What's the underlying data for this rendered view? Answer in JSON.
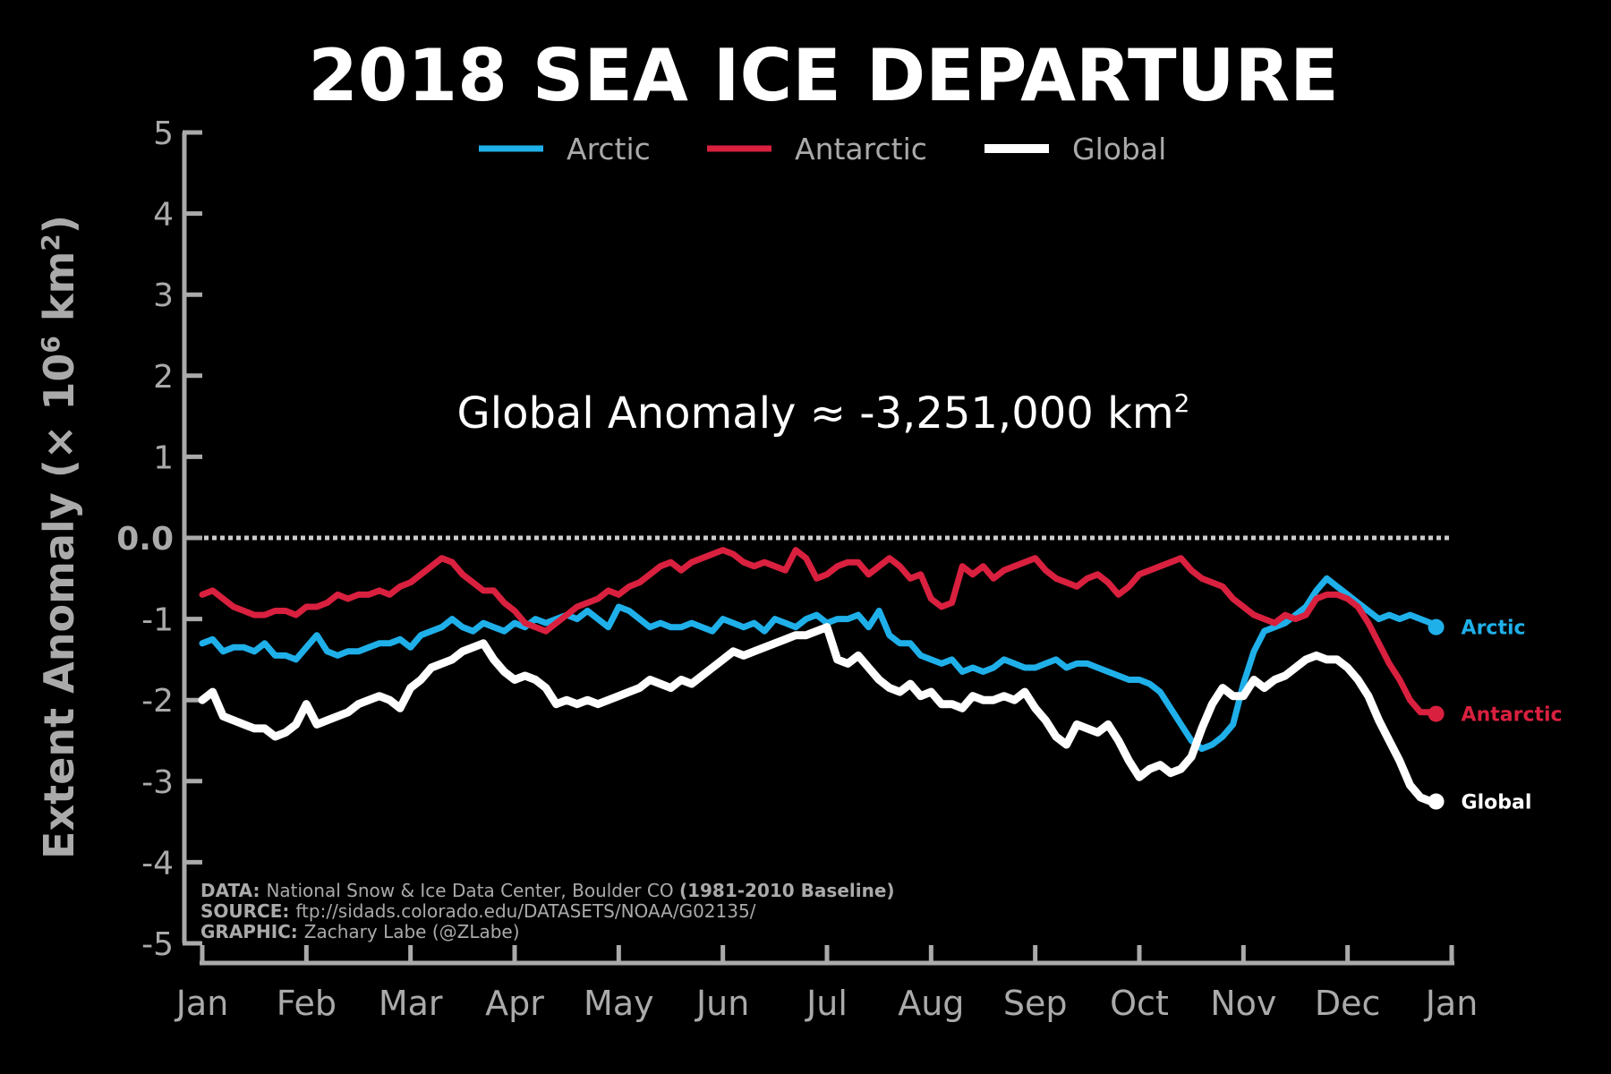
{
  "chart_data": {
    "type": "line",
    "title": "2018 SEA ICE DEPARTURE",
    "ylabel": "Extent Anomaly (× 10",
    "ylabel_sup": "6",
    "ylabel_end": " km",
    "ylabel_sup2": "2",
    "ylabel_close": ")",
    "xlabel": "",
    "ylim": [
      -5,
      5
    ],
    "xlim": [
      0,
      12
    ],
    "y_ticks": [
      5,
      4,
      3,
      2,
      1,
      0,
      -1,
      -2,
      -3,
      -4,
      -5
    ],
    "y_tick_labels": [
      "5",
      "4",
      "3",
      "2",
      "1",
      "0.0",
      "-1",
      "-2",
      "-3",
      "-4",
      "-5"
    ],
    "x_ticks": [
      0,
      1,
      2,
      3,
      4,
      5,
      6,
      7,
      8,
      9,
      10,
      11,
      12
    ],
    "x_tick_labels": [
      "Jan",
      "Feb",
      "Mar",
      "Apr",
      "May",
      "Jun",
      "Jul",
      "Aug",
      "Sep",
      "Oct",
      "Nov",
      "Dec",
      "Jan"
    ],
    "zero_line": 0,
    "annotation": {
      "prefix": "Global Anomaly ≈ -3,251,000 km",
      "sup": "2",
      "value": -3.251
    },
    "legend": {
      "placement": "top-center",
      "entries": [
        "Arctic",
        "Antarctic",
        "Global"
      ]
    },
    "credits": [
      {
        "label": "DATA:",
        "text": "National Snow & Ice Data Center, Boulder CO ",
        "bold_tail": "(1981-2010 Baseline)"
      },
      {
        "label": "SOURCE:",
        "text": "ftp://sidads.colorado.edu/DATASETS/NOAA/G02135/",
        "bold_tail": ""
      },
      {
        "label": "GRAPHIC:",
        "text": "Zachary Labe (@ZLabe)",
        "bold_tail": ""
      }
    ],
    "series": [
      {
        "name": "Arctic",
        "color": "#1fb0ea",
        "end_label": "Arctic",
        "x": [
          0.0,
          0.1,
          0.2,
          0.3,
          0.4,
          0.5,
          0.6,
          0.7,
          0.8,
          0.9,
          1.0,
          1.1,
          1.2,
          1.3,
          1.4,
          1.5,
          1.6,
          1.7,
          1.8,
          1.9,
          2.0,
          2.1,
          2.2,
          2.3,
          2.4,
          2.5,
          2.6,
          2.7,
          2.8,
          2.9,
          3.0,
          3.1,
          3.2,
          3.3,
          3.4,
          3.5,
          3.6,
          3.7,
          3.8,
          3.9,
          4.0,
          4.1,
          4.2,
          4.3,
          4.4,
          4.5,
          4.6,
          4.7,
          4.8,
          4.9,
          5.0,
          5.1,
          5.2,
          5.3,
          5.4,
          5.5,
          5.6,
          5.7,
          5.8,
          5.9,
          6.0,
          6.1,
          6.2,
          6.3,
          6.4,
          6.5,
          6.6,
          6.7,
          6.8,
          6.9,
          7.0,
          7.1,
          7.2,
          7.3,
          7.4,
          7.5,
          7.6,
          7.7,
          7.8,
          7.9,
          8.0,
          8.1,
          8.2,
          8.3,
          8.4,
          8.5,
          8.6,
          8.7,
          8.8,
          8.9,
          9.0,
          9.1,
          9.2,
          9.3,
          9.4,
          9.5,
          9.6,
          9.7,
          9.8,
          9.9,
          10.0,
          10.1,
          10.2,
          10.3,
          10.4,
          10.5,
          10.6,
          10.7,
          10.8,
          10.9,
          11.0,
          11.1,
          11.2,
          11.3,
          11.4,
          11.5,
          11.6,
          11.7,
          11.8,
          11.85
        ],
        "values": [
          -1.3,
          -1.25,
          -1.4,
          -1.35,
          -1.35,
          -1.4,
          -1.3,
          -1.45,
          -1.45,
          -1.5,
          -1.35,
          -1.2,
          -1.4,
          -1.45,
          -1.4,
          -1.4,
          -1.35,
          -1.3,
          -1.3,
          -1.25,
          -1.35,
          -1.2,
          -1.15,
          -1.1,
          -1.0,
          -1.1,
          -1.15,
          -1.05,
          -1.1,
          -1.15,
          -1.05,
          -1.1,
          -1.0,
          -1.05,
          -1.0,
          -0.95,
          -1.0,
          -0.9,
          -1.0,
          -1.1,
          -0.85,
          -0.9,
          -1.0,
          -1.1,
          -1.05,
          -1.1,
          -1.1,
          -1.05,
          -1.1,
          -1.15,
          -1.0,
          -1.05,
          -1.1,
          -1.05,
          -1.15,
          -1.0,
          -1.05,
          -1.1,
          -1.0,
          -0.95,
          -1.05,
          -1.0,
          -1.0,
          -0.95,
          -1.1,
          -0.9,
          -1.2,
          -1.3,
          -1.3,
          -1.45,
          -1.5,
          -1.55,
          -1.5,
          -1.65,
          -1.6,
          -1.65,
          -1.6,
          -1.5,
          -1.55,
          -1.6,
          -1.6,
          -1.55,
          -1.5,
          -1.6,
          -1.55,
          -1.55,
          -1.6,
          -1.65,
          -1.7,
          -1.75,
          -1.75,
          -1.8,
          -1.9,
          -2.1,
          -2.3,
          -2.5,
          -2.6,
          -2.55,
          -2.45,
          -2.3,
          -1.8,
          -1.4,
          -1.15,
          -1.1,
          -1.05,
          -0.95,
          -0.85,
          -0.65,
          -0.5,
          -0.6,
          -0.7,
          -0.8,
          -0.9,
          -1.0,
          -0.95,
          -1.0,
          -0.95,
          -1.0,
          -1.05,
          -1.1
        ]
      },
      {
        "name": "Antarctic",
        "color": "#d9203f",
        "end_label": "Antarctic",
        "x": [
          0.0,
          0.1,
          0.2,
          0.3,
          0.4,
          0.5,
          0.6,
          0.7,
          0.8,
          0.9,
          1.0,
          1.1,
          1.2,
          1.3,
          1.4,
          1.5,
          1.6,
          1.7,
          1.8,
          1.9,
          2.0,
          2.1,
          2.2,
          2.3,
          2.4,
          2.5,
          2.6,
          2.7,
          2.8,
          2.9,
          3.0,
          3.1,
          3.2,
          3.3,
          3.4,
          3.5,
          3.6,
          3.7,
          3.8,
          3.9,
          4.0,
          4.1,
          4.2,
          4.3,
          4.4,
          4.5,
          4.6,
          4.7,
          4.8,
          4.9,
          5.0,
          5.1,
          5.2,
          5.3,
          5.4,
          5.5,
          5.6,
          5.7,
          5.8,
          5.9,
          6.0,
          6.1,
          6.2,
          6.3,
          6.4,
          6.5,
          6.6,
          6.7,
          6.8,
          6.9,
          7.0,
          7.1,
          7.2,
          7.3,
          7.4,
          7.5,
          7.6,
          7.7,
          7.8,
          7.9,
          8.0,
          8.1,
          8.2,
          8.3,
          8.4,
          8.5,
          8.6,
          8.7,
          8.8,
          8.9,
          9.0,
          9.1,
          9.2,
          9.3,
          9.4,
          9.5,
          9.6,
          9.7,
          9.8,
          9.9,
          10.0,
          10.1,
          10.2,
          10.3,
          10.4,
          10.5,
          10.6,
          10.7,
          10.8,
          10.9,
          11.0,
          11.1,
          11.2,
          11.3,
          11.4,
          11.5,
          11.6,
          11.7,
          11.8,
          11.85
        ],
        "values": [
          -0.7,
          -0.65,
          -0.75,
          -0.85,
          -0.9,
          -0.95,
          -0.95,
          -0.9,
          -0.9,
          -0.95,
          -0.85,
          -0.85,
          -0.8,
          -0.7,
          -0.75,
          -0.7,
          -0.7,
          -0.65,
          -0.7,
          -0.6,
          -0.55,
          -0.45,
          -0.35,
          -0.25,
          -0.3,
          -0.45,
          -0.55,
          -0.65,
          -0.65,
          -0.8,
          -0.9,
          -1.05,
          -1.1,
          -1.15,
          -1.05,
          -0.95,
          -0.85,
          -0.8,
          -0.75,
          -0.65,
          -0.7,
          -0.6,
          -0.55,
          -0.45,
          -0.35,
          -0.3,
          -0.4,
          -0.3,
          -0.25,
          -0.2,
          -0.15,
          -0.2,
          -0.3,
          -0.35,
          -0.3,
          -0.35,
          -0.4,
          -0.15,
          -0.25,
          -0.5,
          -0.45,
          -0.35,
          -0.3,
          -0.3,
          -0.45,
          -0.35,
          -0.25,
          -0.35,
          -0.5,
          -0.45,
          -0.75,
          -0.85,
          -0.8,
          -0.35,
          -0.45,
          -0.35,
          -0.5,
          -0.4,
          -0.35,
          -0.3,
          -0.25,
          -0.4,
          -0.5,
          -0.55,
          -0.6,
          -0.5,
          -0.45,
          -0.55,
          -0.7,
          -0.6,
          -0.45,
          -0.4,
          -0.35,
          -0.3,
          -0.25,
          -0.4,
          -0.5,
          -0.55,
          -0.6,
          -0.75,
          -0.85,
          -0.95,
          -1.0,
          -1.05,
          -0.95,
          -1.0,
          -0.95,
          -0.75,
          -0.7,
          -0.7,
          -0.75,
          -0.85,
          -1.05,
          -1.3,
          -1.55,
          -1.75,
          -2.0,
          -2.15,
          -2.15,
          -2.17
        ]
      },
      {
        "name": "Global",
        "color": "#ffffff",
        "end_label": "Global",
        "x": [
          0.0,
          0.1,
          0.2,
          0.3,
          0.4,
          0.5,
          0.6,
          0.7,
          0.8,
          0.9,
          1.0,
          1.1,
          1.2,
          1.3,
          1.4,
          1.5,
          1.6,
          1.7,
          1.8,
          1.9,
          2.0,
          2.1,
          2.2,
          2.3,
          2.4,
          2.5,
          2.6,
          2.7,
          2.8,
          2.9,
          3.0,
          3.1,
          3.2,
          3.3,
          3.4,
          3.5,
          3.6,
          3.7,
          3.8,
          3.9,
          4.0,
          4.1,
          4.2,
          4.3,
          4.4,
          4.5,
          4.6,
          4.7,
          4.8,
          4.9,
          5.0,
          5.1,
          5.2,
          5.3,
          5.4,
          5.5,
          5.6,
          5.7,
          5.8,
          5.9,
          6.0,
          6.1,
          6.2,
          6.3,
          6.4,
          6.5,
          6.6,
          6.7,
          6.8,
          6.9,
          7.0,
          7.1,
          7.2,
          7.3,
          7.4,
          7.5,
          7.6,
          7.7,
          7.8,
          7.9,
          8.0,
          8.1,
          8.2,
          8.3,
          8.4,
          8.5,
          8.6,
          8.7,
          8.8,
          8.9,
          9.0,
          9.1,
          9.2,
          9.3,
          9.4,
          9.5,
          9.6,
          9.7,
          9.8,
          9.9,
          10.0,
          10.1,
          10.2,
          10.3,
          10.4,
          10.5,
          10.6,
          10.7,
          10.8,
          10.9,
          11.0,
          11.1,
          11.2,
          11.3,
          11.4,
          11.5,
          11.6,
          11.7,
          11.8,
          11.85
        ],
        "values": [
          -2.0,
          -1.9,
          -2.2,
          -2.25,
          -2.3,
          -2.35,
          -2.35,
          -2.45,
          -2.4,
          -2.3,
          -2.05,
          -2.3,
          -2.25,
          -2.2,
          -2.15,
          -2.05,
          -2.0,
          -1.95,
          -2.0,
          -2.1,
          -1.85,
          -1.75,
          -1.6,
          -1.55,
          -1.5,
          -1.4,
          -1.35,
          -1.3,
          -1.5,
          -1.65,
          -1.75,
          -1.7,
          -1.75,
          -1.85,
          -2.05,
          -2.0,
          -2.05,
          -2.0,
          -2.05,
          -2.0,
          -1.95,
          -1.9,
          -1.85,
          -1.75,
          -1.8,
          -1.85,
          -1.75,
          -1.8,
          -1.7,
          -1.6,
          -1.5,
          -1.4,
          -1.45,
          -1.4,
          -1.35,
          -1.3,
          -1.25,
          -1.2,
          -1.2,
          -1.15,
          -1.1,
          -1.5,
          -1.55,
          -1.45,
          -1.6,
          -1.75,
          -1.85,
          -1.9,
          -1.8,
          -1.95,
          -1.9,
          -2.05,
          -2.05,
          -2.1,
          -1.95,
          -2.0,
          -2.0,
          -1.95,
          -2.0,
          -1.9,
          -2.1,
          -2.25,
          -2.45,
          -2.55,
          -2.3,
          -2.35,
          -2.4,
          -2.3,
          -2.5,
          -2.75,
          -2.95,
          -2.85,
          -2.8,
          -2.9,
          -2.85,
          -2.7,
          -2.35,
          -2.05,
          -1.85,
          -1.95,
          -1.95,
          -1.75,
          -1.85,
          -1.75,
          -1.7,
          -1.6,
          -1.5,
          -1.45,
          -1.5,
          -1.5,
          -1.6,
          -1.75,
          -1.95,
          -2.25,
          -2.5,
          -2.75,
          -3.05,
          -3.2,
          -3.25,
          -3.251
        ]
      }
    ]
  }
}
